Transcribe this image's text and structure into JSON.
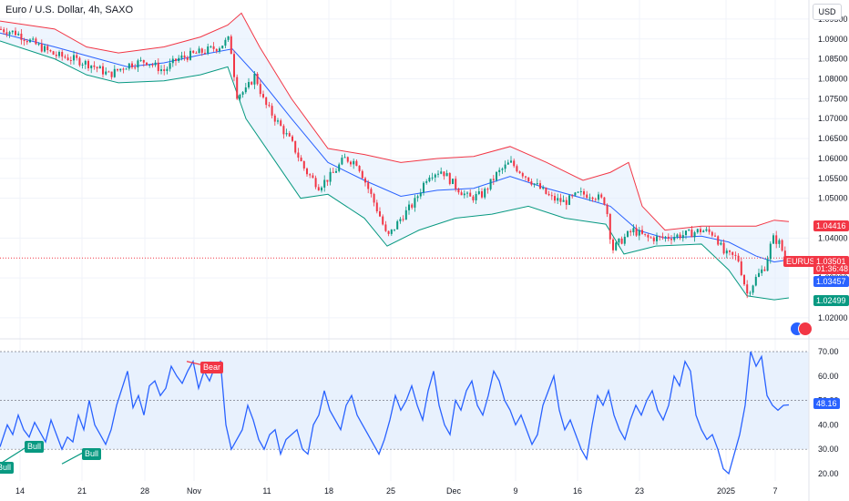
{
  "header": {
    "title": "Euro / U.S. Dollar, 4h, SAXO",
    "currency": "USD"
  },
  "price_tags": {
    "upper_band": "1.04416",
    "symbol": "EURUSD",
    "last": "1.03501",
    "countdown": "01:36:48",
    "middle_band": "1.03457",
    "lower_band": "1.02499",
    "rsi_value": "48.16"
  },
  "colors": {
    "up": "#089981",
    "down": "#f23645",
    "band_upper": "#f23645",
    "band_lower": "#089981",
    "band_mid": "#2962ff",
    "band_fill": "#e3effd",
    "rsi_line": "#2962ff",
    "rsi_zone": "#e8f1fd"
  },
  "signals": [
    {
      "label": "Bull",
      "type": "bull"
    },
    {
      "label": "Bull",
      "type": "bull"
    },
    {
      "label": "Bull",
      "type": "bull"
    },
    {
      "label": "Bear",
      "type": "bear"
    }
  ],
  "chart_data": [
    {
      "type": "candlestick",
      "title": "Euro / U.S. Dollar, 4h, SAXO",
      "ylim": [
        1.0163,
        1.0975
      ],
      "yticks": [
        "1.02000",
        "1.03000",
        "1.03500",
        "1.04000",
        "1.05000",
        "1.05500",
        "1.06000",
        "1.06500",
        "1.07000",
        "1.07500",
        "1.08000",
        "1.08500",
        "1.09000",
        "1.09500"
      ],
      "xticks": [
        "14",
        "21",
        "28",
        "Nov",
        "11",
        "18",
        "25",
        "Dec",
        "9",
        "16",
        "23",
        "2025",
        "7"
      ],
      "close_path": [
        {
          "x": 0,
          "y": 1.0925
        },
        {
          "x": 18,
          "y": 1.0915
        },
        {
          "x": 40,
          "y": 1.0885
        },
        {
          "x": 60,
          "y": 1.086
        },
        {
          "x": 80,
          "y": 1.085
        },
        {
          "x": 100,
          "y": 1.0835
        },
        {
          "x": 120,
          "y": 1.081
        },
        {
          "x": 140,
          "y": 1.0835
        },
        {
          "x": 160,
          "y": 1.0845
        },
        {
          "x": 180,
          "y": 1.082
        },
        {
          "x": 195,
          "y": 1.085
        },
        {
          "x": 210,
          "y": 1.086
        },
        {
          "x": 225,
          "y": 1.087
        },
        {
          "x": 240,
          "y": 1.088
        },
        {
          "x": 252,
          "y": 1.09
        },
        {
          "x": 260,
          "y": 1.076
        },
        {
          "x": 270,
          "y": 1.077
        },
        {
          "x": 280,
          "y": 1.081
        },
        {
          "x": 290,
          "y": 1.074
        },
        {
          "x": 305,
          "y": 1.069
        },
        {
          "x": 320,
          "y": 1.064
        },
        {
          "x": 335,
          "y": 1.057
        },
        {
          "x": 350,
          "y": 1.053
        },
        {
          "x": 365,
          "y": 1.056
        },
        {
          "x": 378,
          "y": 1.06
        },
        {
          "x": 392,
          "y": 1.059
        },
        {
          "x": 405,
          "y": 1.052
        },
        {
          "x": 418,
          "y": 1.045
        },
        {
          "x": 425,
          "y": 1.04
        },
        {
          "x": 440,
          "y": 1.045
        },
        {
          "x": 455,
          "y": 1.049
        },
        {
          "x": 470,
          "y": 1.056
        },
        {
          "x": 485,
          "y": 1.057
        },
        {
          "x": 500,
          "y": 1.053
        },
        {
          "x": 515,
          "y": 1.05
        },
        {
          "x": 530,
          "y": 1.051
        },
        {
          "x": 545,
          "y": 1.056
        },
        {
          "x": 560,
          "y": 1.059
        },
        {
          "x": 575,
          "y": 1.056
        },
        {
          "x": 590,
          "y": 1.053
        },
        {
          "x": 605,
          "y": 1.05
        },
        {
          "x": 620,
          "y": 1.049
        },
        {
          "x": 635,
          "y": 1.051
        },
        {
          "x": 650,
          "y": 1.051
        },
        {
          "x": 665,
          "y": 1.049
        },
        {
          "x": 672,
          "y": 1.037
        },
        {
          "x": 680,
          "y": 1.039
        },
        {
          "x": 695,
          "y": 1.042
        },
        {
          "x": 710,
          "y": 1.04
        },
        {
          "x": 725,
          "y": 1.04
        },
        {
          "x": 740,
          "y": 1.0405
        },
        {
          "x": 755,
          "y": 1.041
        },
        {
          "x": 770,
          "y": 1.042
        },
        {
          "x": 785,
          "y": 1.041
        },
        {
          "x": 795,
          "y": 1.036
        },
        {
          "x": 810,
          "y": 1.035
        },
        {
          "x": 820,
          "y": 1.026
        },
        {
          "x": 830,
          "y": 1.03
        },
        {
          "x": 840,
          "y": 1.033
        },
        {
          "x": 848,
          "y": 1.04
        },
        {
          "x": 855,
          "y": 1.039
        },
        {
          "x": 862,
          "y": 1.035
        }
      ],
      "bollinger_upper": [
        {
          "x": 0,
          "y": 1.0945
        },
        {
          "x": 60,
          "y": 1.0925
        },
        {
          "x": 95,
          "y": 1.088
        },
        {
          "x": 130,
          "y": 1.0865
        },
        {
          "x": 180,
          "y": 1.088
        },
        {
          "x": 220,
          "y": 1.0905
        },
        {
          "x": 250,
          "y": 1.0935
        },
        {
          "x": 265,
          "y": 1.0965
        },
        {
          "x": 285,
          "y": 1.088
        },
        {
          "x": 320,
          "y": 1.075
        },
        {
          "x": 360,
          "y": 1.0625
        },
        {
          "x": 400,
          "y": 1.061
        },
        {
          "x": 440,
          "y": 1.059
        },
        {
          "x": 480,
          "y": 1.06
        },
        {
          "x": 520,
          "y": 1.0605
        },
        {
          "x": 560,
          "y": 1.063
        },
        {
          "x": 600,
          "y": 1.059
        },
        {
          "x": 640,
          "y": 1.0545
        },
        {
          "x": 670,
          "y": 1.0565
        },
        {
          "x": 690,
          "y": 1.059
        },
        {
          "x": 705,
          "y": 1.048
        },
        {
          "x": 730,
          "y": 1.042
        },
        {
          "x": 770,
          "y": 1.043
        },
        {
          "x": 800,
          "y": 1.043
        },
        {
          "x": 830,
          "y": 1.043
        },
        {
          "x": 850,
          "y": 1.0445
        },
        {
          "x": 866,
          "y": 1.04416
        }
      ],
      "bollinger_middle": [
        {
          "x": 0,
          "y": 1.0915
        },
        {
          "x": 60,
          "y": 1.088
        },
        {
          "x": 100,
          "y": 1.0855
        },
        {
          "x": 140,
          "y": 1.083
        },
        {
          "x": 180,
          "y": 1.084
        },
        {
          "x": 220,
          "y": 1.086
        },
        {
          "x": 255,
          "y": 1.0875
        },
        {
          "x": 285,
          "y": 1.08
        },
        {
          "x": 320,
          "y": 1.07
        },
        {
          "x": 360,
          "y": 1.059
        },
        {
          "x": 400,
          "y": 1.0545
        },
        {
          "x": 440,
          "y": 1.0505
        },
        {
          "x": 480,
          "y": 1.052
        },
        {
          "x": 520,
          "y": 1.0525
        },
        {
          "x": 560,
          "y": 1.0555
        },
        {
          "x": 600,
          "y": 1.0525
        },
        {
          "x": 640,
          "y": 1.05
        },
        {
          "x": 670,
          "y": 1.048
        },
        {
          "x": 700,
          "y": 1.042
        },
        {
          "x": 730,
          "y": 1.04
        },
        {
          "x": 770,
          "y": 1.0405
        },
        {
          "x": 800,
          "y": 1.039
        },
        {
          "x": 830,
          "y": 1.0355
        },
        {
          "x": 850,
          "y": 1.034
        },
        {
          "x": 866,
          "y": 1.03457
        }
      ],
      "bollinger_lower": [
        {
          "x": 0,
          "y": 1.0895
        },
        {
          "x": 60,
          "y": 1.085
        },
        {
          "x": 95,
          "y": 1.081
        },
        {
          "x": 130,
          "y": 1.079
        },
        {
          "x": 180,
          "y": 1.0795
        },
        {
          "x": 220,
          "y": 1.081
        },
        {
          "x": 250,
          "y": 1.083
        },
        {
          "x": 270,
          "y": 1.07
        },
        {
          "x": 300,
          "y": 1.06
        },
        {
          "x": 330,
          "y": 1.05
        },
        {
          "x": 360,
          "y": 1.051
        },
        {
          "x": 400,
          "y": 1.045
        },
        {
          "x": 425,
          "y": 1.038
        },
        {
          "x": 460,
          "y": 1.042
        },
        {
          "x": 500,
          "y": 1.045
        },
        {
          "x": 540,
          "y": 1.046
        },
        {
          "x": 580,
          "y": 1.048
        },
        {
          "x": 620,
          "y": 1.045
        },
        {
          "x": 665,
          "y": 1.0435
        },
        {
          "x": 685,
          "y": 1.036
        },
        {
          "x": 720,
          "y": 1.038
        },
        {
          "x": 770,
          "y": 1.0385
        },
        {
          "x": 800,
          "y": 1.032
        },
        {
          "x": 820,
          "y": 1.0255
        },
        {
          "x": 850,
          "y": 1.0245
        },
        {
          "x": 866,
          "y": 1.02499
        }
      ]
    },
    {
      "type": "line",
      "title": "",
      "ylim": [
        17,
        73
      ],
      "yticks": [
        "20.00",
        "30.00",
        "40.00",
        "50.00",
        "60.00",
        "70.00"
      ],
      "zone": [
        30,
        70
      ],
      "midline": 50,
      "last_value": 48.16,
      "x": [
        0,
        8,
        14,
        20,
        26,
        32,
        38,
        44,
        50,
        56,
        62,
        68,
        74,
        80,
        86,
        92,
        98,
        104,
        110,
        116,
        122,
        128,
        134,
        140,
        146,
        152,
        158,
        164,
        170,
        176,
        182,
        188,
        194,
        200,
        206,
        212,
        218,
        224,
        230,
        236,
        242,
        248,
        254,
        260,
        266,
        272,
        278,
        284,
        290,
        296,
        302,
        308,
        314,
        320,
        326,
        332,
        338,
        344,
        350,
        356,
        362,
        368,
        374,
        380,
        386,
        392,
        398,
        404,
        410,
        416,
        422,
        428,
        434,
        440,
        446,
        452,
        458,
        464,
        470,
        476,
        482,
        488,
        494,
        500,
        506,
        512,
        518,
        524,
        530,
        536,
        542,
        548,
        554,
        560,
        566,
        572,
        578,
        584,
        590,
        596,
        602,
        608,
        614,
        620,
        626,
        632,
        638,
        644,
        650,
        656,
        662,
        668,
        674,
        680,
        686,
        692,
        698,
        704,
        710,
        716,
        722,
        728,
        734,
        740,
        746,
        752,
        758,
        764,
        770,
        776,
        782,
        788,
        794,
        800,
        806,
        812,
        818,
        824,
        830,
        836,
        842,
        848,
        854,
        860,
        866
      ],
      "y": [
        31,
        40,
        36,
        44,
        38,
        35,
        41,
        37,
        33,
        42,
        36,
        30,
        35,
        33,
        44,
        38,
        50,
        40,
        36,
        32,
        38,
        48,
        55,
        62,
        47,
        52,
        44,
        56,
        58,
        52,
        55,
        64,
        60,
        57,
        62,
        66,
        55,
        62,
        58,
        64,
        66,
        40,
        30,
        34,
        38,
        48,
        42,
        34,
        30,
        36,
        38,
        28,
        34,
        36,
        38,
        30,
        28,
        40,
        44,
        54,
        46,
        42,
        38,
        48,
        52,
        44,
        40,
        36,
        32,
        28,
        34,
        42,
        52,
        46,
        50,
        56,
        48,
        42,
        54,
        62,
        48,
        40,
        36,
        50,
        46,
        54,
        58,
        48,
        44,
        52,
        62,
        58,
        50,
        46,
        40,
        44,
        38,
        32,
        36,
        48,
        54,
        60,
        46,
        38,
        42,
        36,
        30,
        26,
        40,
        52,
        48,
        54,
        44,
        38,
        34,
        42,
        48,
        44,
        50,
        54,
        46,
        42,
        48,
        60,
        56,
        66,
        62,
        44,
        38,
        34,
        36,
        30,
        22,
        20,
        28,
        36,
        48,
        70,
        64,
        68,
        52,
        48,
        46,
        48,
        48.16
      ]
    }
  ]
}
